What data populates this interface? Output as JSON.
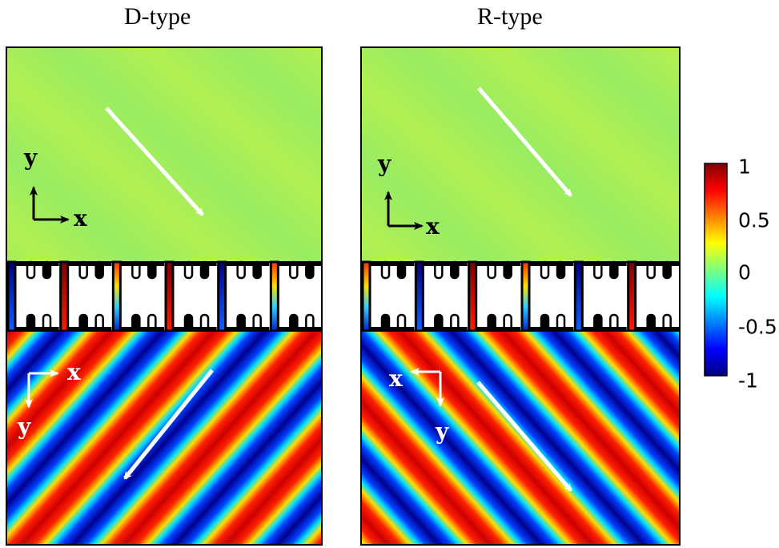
{
  "panels": [
    {
      "id": "d",
      "title": "D-type",
      "lower_stripe_direction": "down-left",
      "lower_axes": "x-right"
    },
    {
      "id": "r",
      "title": "R-type",
      "lower_stripe_direction": "down-right",
      "lower_axes": "x-left"
    }
  ],
  "axis_labels": {
    "x": "x",
    "y": "y"
  },
  "colorbar": {
    "ticks": [
      "1",
      "0.5",
      "0",
      "-0.5",
      "-1"
    ],
    "colormap": "jet",
    "colors": [
      "#00007f",
      "#0000ff",
      "#007fff",
      "#00ffff",
      "#7fff7f",
      "#ffff00",
      "#ff7f00",
      "#ff0000",
      "#7f0000"
    ]
  },
  "colors": {
    "upper_field": "#a6ee5c",
    "arrow": "#ffffff",
    "frame": "#000000"
  }
}
